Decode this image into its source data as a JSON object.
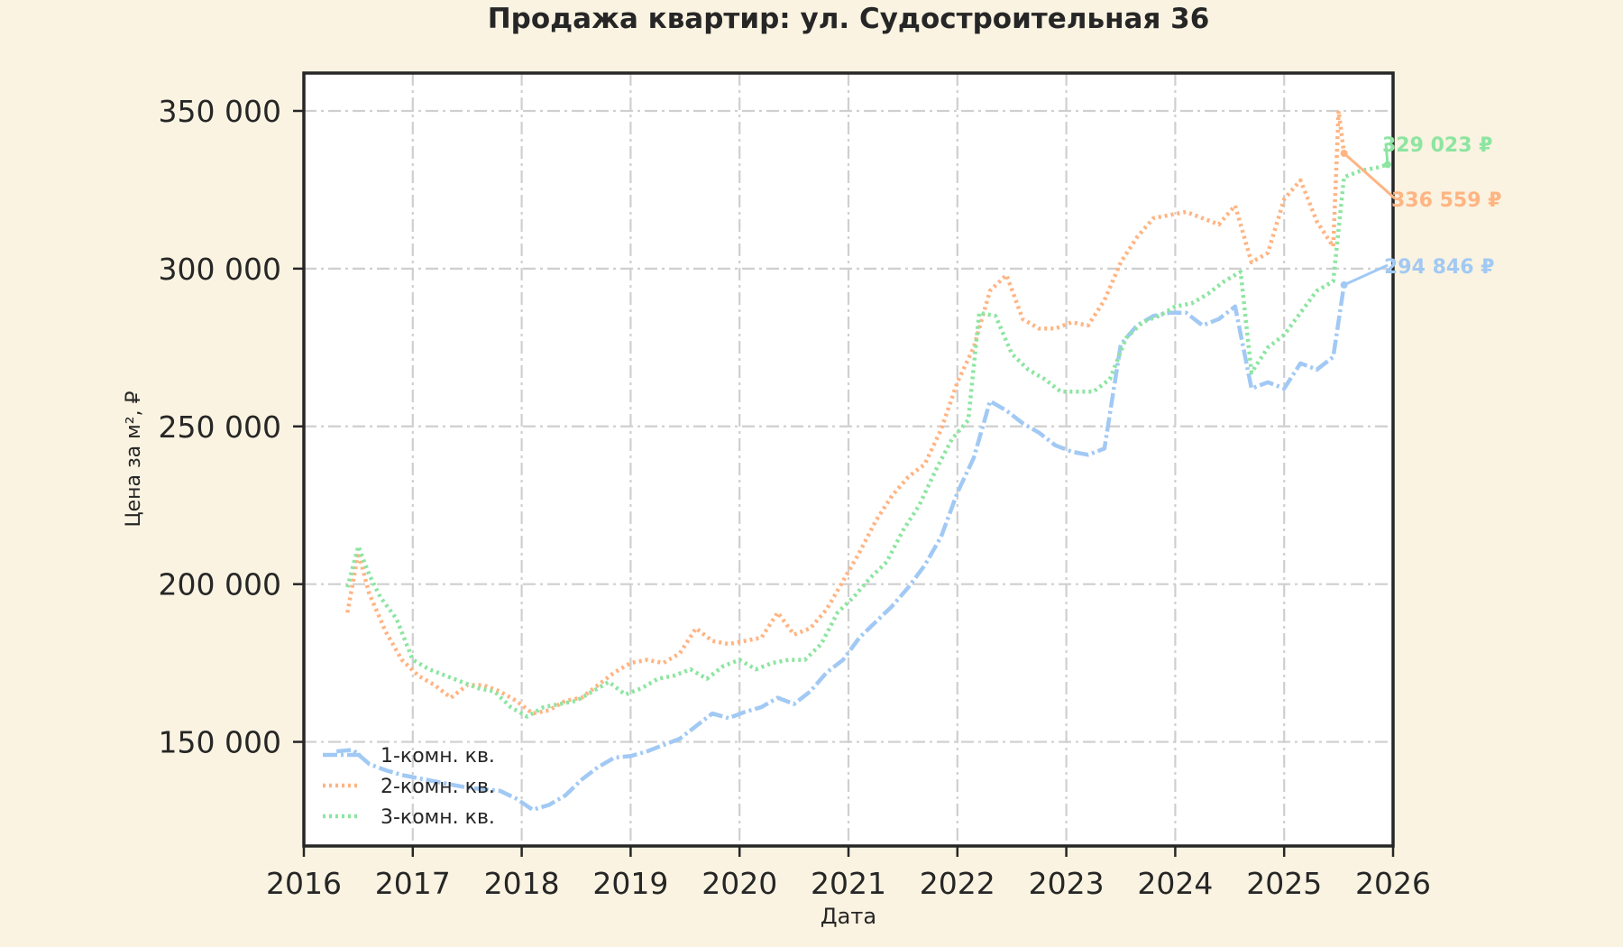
{
  "chart_data": {
    "type": "line",
    "title": "Продажа квартир: ул. Судостроительная 36",
    "xlabel": "Дата",
    "ylabel": "Цена за м², ₽",
    "xlim": [
      2016,
      2026
    ],
    "ylim": [
      117000,
      362000
    ],
    "x_ticks": [
      "2016",
      "2017",
      "2018",
      "2019",
      "2020",
      "2021",
      "2022",
      "2023",
      "2024",
      "2025",
      "2026"
    ],
    "y_ticks": [
      {
        "value": 150000,
        "label": "150 000"
      },
      {
        "value": 200000,
        "label": "200 000"
      },
      {
        "value": 250000,
        "label": "250 000"
      },
      {
        "value": 300000,
        "label": "300 000"
      },
      {
        "value": 350000,
        "label": "350 000"
      }
    ],
    "grid": true,
    "legend_position": "bottom-left",
    "series": [
      {
        "name": "1-комн. кв.",
        "color": "#a1c9f4",
        "style": "dashdot",
        "x": [
          2016.3,
          2016.45,
          2016.6,
          2016.75,
          2016.9,
          2017.05,
          2017.2,
          2017.35,
          2017.5,
          2017.65,
          2017.8,
          2017.95,
          2018.1,
          2018.25,
          2018.4,
          2018.55,
          2018.7,
          2018.85,
          2019.0,
          2019.15,
          2019.3,
          2019.45,
          2019.6,
          2019.75,
          2019.9,
          2020.05,
          2020.2,
          2020.35,
          2020.5,
          2020.65,
          2020.8,
          2020.95,
          2021.1,
          2021.25,
          2021.4,
          2021.55,
          2021.7,
          2021.85,
          2022.0,
          2022.15,
          2022.3,
          2022.45,
          2022.6,
          2022.75,
          2022.9,
          2023.05,
          2023.2,
          2023.35,
          2023.5,
          2023.65,
          2023.8,
          2023.95,
          2024.1,
          2024.25,
          2024.4,
          2024.55,
          2024.7,
          2024.85,
          2025.0,
          2025.15,
          2025.3,
          2025.45,
          2025.55
        ],
        "y": [
          147000,
          147500,
          143000,
          141000,
          139500,
          138500,
          137500,
          136500,
          135500,
          135000,
          134500,
          132000,
          128500,
          130000,
          133000,
          138000,
          142000,
          145000,
          145500,
          147000,
          149000,
          151000,
          155000,
          159000,
          157500,
          159500,
          161000,
          164000,
          162000,
          166000,
          172000,
          176000,
          183000,
          188000,
          193000,
          199000,
          206000,
          215000,
          229000,
          240000,
          258000,
          255000,
          251000,
          248000,
          244000,
          242000,
          241000,
          243000,
          276000,
          282000,
          285000,
          286000,
          286000,
          282000,
          284000,
          288000,
          262000,
          264000,
          262000,
          270000,
          268000,
          272000,
          294846
        ]
      },
      {
        "name": "2-комн. кв.",
        "color": "#ffb482",
        "style": "dotted",
        "x": [
          2016.4,
          2016.5,
          2016.6,
          2016.75,
          2016.9,
          2017.05,
          2017.2,
          2017.35,
          2017.5,
          2017.65,
          2017.8,
          2017.95,
          2018.1,
          2018.25,
          2018.4,
          2018.55,
          2018.7,
          2018.85,
          2019.0,
          2019.15,
          2019.3,
          2019.45,
          2019.6,
          2019.75,
          2019.9,
          2020.05,
          2020.2,
          2020.35,
          2020.5,
          2020.65,
          2020.8,
          2020.95,
          2021.1,
          2021.25,
          2021.4,
          2021.55,
          2021.7,
          2021.85,
          2022.0,
          2022.15,
          2022.3,
          2022.45,
          2022.6,
          2022.75,
          2022.9,
          2023.05,
          2023.2,
          2023.35,
          2023.5,
          2023.65,
          2023.8,
          2023.95,
          2024.1,
          2024.25,
          2024.4,
          2024.55,
          2024.7,
          2024.85,
          2025.0,
          2025.15,
          2025.3,
          2025.45,
          2025.5,
          2025.55
        ],
        "y": [
          191000,
          210000,
          197000,
          185000,
          176000,
          171000,
          168000,
          164000,
          168000,
          168000,
          166000,
          163000,
          159000,
          160000,
          163000,
          164000,
          168000,
          172000,
          175000,
          176000,
          175000,
          178000,
          186000,
          182000,
          181000,
          182000,
          183000,
          191000,
          184000,
          186000,
          192000,
          201000,
          210000,
          220000,
          228000,
          234000,
          238000,
          249000,
          264000,
          275000,
          293000,
          298000,
          284000,
          281000,
          281000,
          283000,
          282000,
          290000,
          302000,
          310000,
          316000,
          317000,
          318000,
          316000,
          314000,
          320000,
          302000,
          305000,
          322000,
          328000,
          315000,
          307000,
          350000,
          336559
        ]
      },
      {
        "name": "3-комн. кв.",
        "color": "#8de5a1",
        "style": "dotted",
        "x": [
          2016.4,
          2016.5,
          2016.6,
          2016.7,
          2016.85,
          2017.0,
          2017.15,
          2017.3,
          2017.45,
          2017.6,
          2017.75,
          2017.9,
          2018.05,
          2018.2,
          2018.35,
          2018.5,
          2018.65,
          2018.8,
          2018.95,
          2019.1,
          2019.25,
          2019.4,
          2019.55,
          2019.7,
          2019.85,
          2020.0,
          2020.15,
          2020.3,
          2020.45,
          2020.6,
          2020.75,
          2020.9,
          2021.05,
          2021.2,
          2021.35,
          2021.5,
          2021.65,
          2021.8,
          2021.95,
          2022.1,
          2022.2,
          2022.35,
          2022.5,
          2022.65,
          2022.8,
          2022.95,
          2023.1,
          2023.25,
          2023.4,
          2023.55,
          2023.7,
          2023.85,
          2024.0,
          2024.15,
          2024.3,
          2024.45,
          2024.6,
          2024.7,
          2024.85,
          2025.0,
          2025.15,
          2025.3,
          2025.45,
          2025.55,
          2025.7,
          2025.85,
          2025.95
        ],
        "y": [
          199000,
          212000,
          203000,
          196000,
          189000,
          176000,
          173000,
          171000,
          169000,
          167000,
          166000,
          161000,
          158000,
          161000,
          162000,
          163000,
          166000,
          169000,
          165000,
          167000,
          170000,
          171000,
          173000,
          170000,
          174000,
          176000,
          173000,
          175000,
          176000,
          176000,
          181000,
          191000,
          196000,
          202000,
          207000,
          217000,
          225000,
          236000,
          246000,
          252000,
          286000,
          285000,
          273000,
          268000,
          265000,
          261000,
          261000,
          261000,
          265000,
          278000,
          283000,
          285000,
          288000,
          289000,
          292000,
          296000,
          299000,
          267000,
          275000,
          279000,
          286000,
          293000,
          296000,
          329023,
          331000,
          332000,
          333000
        ]
      }
    ],
    "annotations": [
      {
        "text": "329 023 ₽",
        "series": "3-комн. кв."
      },
      {
        "text": "336 559 ₽",
        "series": "2-комн. кв."
      },
      {
        "text": "294 846 ₽",
        "series": "1-комн. кв."
      }
    ]
  }
}
